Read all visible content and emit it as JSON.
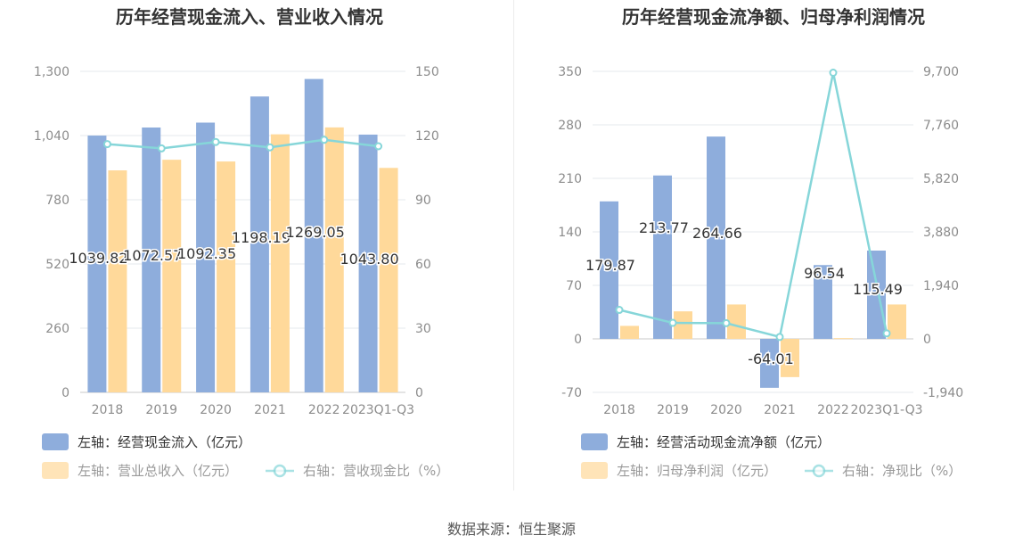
{
  "source": "数据来源：恒生聚源",
  "colors": {
    "bar_primary": "#8eaddc",
    "bar_secondary": "#ffd99a",
    "line": "#86d6d9",
    "grid": "#e6e8ee",
    "axis_text": "#8c8c8c",
    "title": "#333333",
    "label": "#333333"
  },
  "chart_data": [
    {
      "type": "bar",
      "title": "历年经营现金流入、营业收入情况",
      "categories": [
        "2018",
        "2019",
        "2020",
        "2021",
        "2022",
        "2023Q1-Q3"
      ],
      "left_axis": {
        "min": 0,
        "max": 1300,
        "ticks": [
          "0",
          "260",
          "520",
          "780",
          "1,040",
          "1,300"
        ]
      },
      "right_axis": {
        "min": 0,
        "max": 150,
        "ticks": [
          "0",
          "30",
          "60",
          "90",
          "120",
          "150"
        ]
      },
      "series": [
        {
          "name": "左轴：经营现金流入（亿元）",
          "kind": "bar",
          "axis": "left",
          "values": [
            1039.82,
            1072.57,
            1092.35,
            1198.19,
            1269.05,
            1043.8
          ],
          "labels": [
            "1039.82",
            "1072.57",
            "1092.35",
            "1198.19",
            "1269.05",
            "1043.80"
          ]
        },
        {
          "name": "左轴：营业总收入（亿元）",
          "kind": "bar",
          "axis": "left",
          "values": [
            899,
            942,
            935,
            1045,
            1073,
            909
          ]
        },
        {
          "name": "右轴：营收现金比（%）",
          "kind": "line",
          "axis": "right",
          "values": [
            116,
            114,
            117,
            114.5,
            118,
            115
          ]
        }
      ]
    },
    {
      "type": "bar",
      "title": "历年经营现金流净额、归母净利润情况",
      "categories": [
        "2018",
        "2019",
        "2020",
        "2021",
        "2022",
        "2023Q1-Q3"
      ],
      "left_axis": {
        "min": -70,
        "max": 350,
        "ticks": [
          "-70",
          "0",
          "70",
          "140",
          "210",
          "280",
          "350"
        ]
      },
      "right_axis": {
        "min": -1940,
        "max": 9700,
        "ticks": [
          "-1,940",
          "0",
          "1,940",
          "3,880",
          "5,820",
          "7,760",
          "9,700"
        ]
      },
      "series": [
        {
          "name": "左轴：经营活动现金流净额（亿元）",
          "kind": "bar",
          "axis": "left",
          "values": [
            179.87,
            213.77,
            264.66,
            -64.01,
            96.54,
            115.49
          ],
          "labels": [
            "179.87",
            "213.77",
            "264.66",
            "-64.01",
            "96.54",
            "115.49"
          ]
        },
        {
          "name": "左轴：归母净利润（亿元）",
          "kind": "bar",
          "axis": "left",
          "values": [
            17,
            36,
            45,
            -50,
            1,
            45
          ]
        },
        {
          "name": "右轴：净现比（%）",
          "kind": "line",
          "axis": "right",
          "values": [
            1050,
            580,
            570,
            70,
            9650,
            200
          ]
        }
      ]
    }
  ]
}
